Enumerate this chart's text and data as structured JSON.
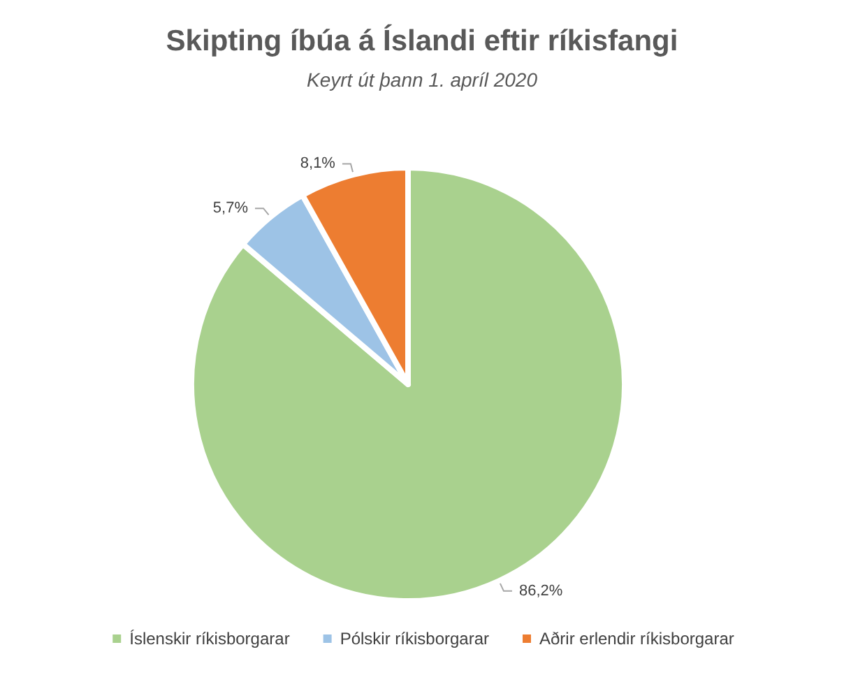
{
  "chart_data": {
    "type": "pie",
    "title": "Skipting íbúa á Íslandi eftir ríkisfangi",
    "subtitle": "Keyrt út þann 1. apríl 2020",
    "categories": [
      "Íslenskir ríkisborgarar",
      "Pólskir ríkisborgarar",
      "Aðrir erlendir ríkisborgarar"
    ],
    "values": [
      86.2,
      5.7,
      8.1
    ],
    "colors": [
      "#a9d18e",
      "#9dc3e6",
      "#ed7d31"
    ],
    "value_labels": [
      "86,2%",
      "5,7%",
      "8,1%"
    ],
    "legend": "bottom"
  }
}
